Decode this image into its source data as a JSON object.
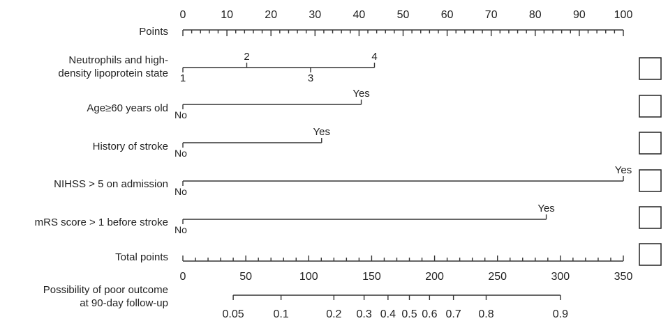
{
  "chart_data": {
    "type": "nomogram",
    "points_scale": {
      "label": "Points",
      "range": [
        0,
        100
      ],
      "major_ticks": [
        0,
        10,
        20,
        30,
        40,
        50,
        60,
        70,
        80,
        90,
        100
      ],
      "minor_step": 2
    },
    "variables": [
      {
        "label_lines": [
          "Neutrophils and high-",
          "density lipoprotein state"
        ],
        "levels": [
          {
            "label": "1",
            "points": 0
          },
          {
            "label": "2",
            "points": 14.5
          },
          {
            "label": "3",
            "points": 29
          },
          {
            "label": "4",
            "points": 43.5
          }
        ]
      },
      {
        "label_lines": [
          "Age≥60 years old"
        ],
        "levels": [
          {
            "label": "No",
            "points": 0
          },
          {
            "label": "Yes",
            "points": 40.5
          }
        ]
      },
      {
        "label_lines": [
          "History of stroke"
        ],
        "levels": [
          {
            "label": "No",
            "points": 0
          },
          {
            "label": "Yes",
            "points": 31.5
          }
        ]
      },
      {
        "label_lines": [
          "NIHSS > 5 on admission"
        ],
        "levels": [
          {
            "label": "No",
            "points": 0
          },
          {
            "label": "Yes",
            "points": 100
          }
        ]
      },
      {
        "label_lines": [
          "mRS score > 1 before stroke"
        ],
        "levels": [
          {
            "label": "No",
            "points": 0
          },
          {
            "label": "Yes",
            "points": 82.5
          }
        ]
      }
    ],
    "total_points_scale": {
      "label": "Total points",
      "range": [
        0,
        350
      ],
      "major_ticks": [
        0,
        50,
        100,
        150,
        200,
        250,
        300,
        350
      ],
      "minor_step": 10
    },
    "probability_scale": {
      "label_lines": [
        "Possibility of poor outcome",
        "at 90-day follow-up"
      ],
      "ticks": [
        {
          "label": "0.05",
          "total_points": 40
        },
        {
          "label": "0.1",
          "total_points": 78
        },
        {
          "label": "0.2",
          "total_points": 120
        },
        {
          "label": "0.3",
          "total_points": 144
        },
        {
          "label": "0.4",
          "total_points": 163
        },
        {
          "label": "0.5",
          "total_points": 180
        },
        {
          "label": "0.6",
          "total_points": 196
        },
        {
          "label": "0.7",
          "total_points": 215
        },
        {
          "label": "0.8",
          "total_points": 241
        },
        {
          "label": "0.9",
          "total_points": 300
        }
      ]
    },
    "checkbox_count": 6
  }
}
